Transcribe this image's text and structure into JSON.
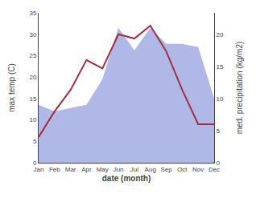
{
  "chart_data": {
    "type": "line",
    "xlabel": "date (month)",
    "ylabel": "max temp (C)",
    "y2label": "med. precipitation (kg/m2)",
    "categories": [
      "Jan",
      "Feb",
      "Mar",
      "Apr",
      "May",
      "Jun",
      "Jul",
      "Aug",
      "Sep",
      "Oct",
      "Nov",
      "Dec"
    ],
    "series": [
      {
        "type": "area",
        "axis": "y2",
        "color": "#b0b8e8",
        "values": [
          9.0,
          8.0,
          8.5,
          9.0,
          13.0,
          21.0,
          17.5,
          21.0,
          18.5,
          18.5,
          18.0,
          10.0
        ]
      },
      {
        "type": "line",
        "color": "#a03040",
        "values": [
          6.0,
          12.0,
          17.0,
          24.0,
          22.0,
          30.0,
          29.0,
          32.0,
          26.0,
          17.0,
          9.0,
          9.0
        ]
      }
    ],
    "ylim": [
      0,
      35
    ],
    "yticks": [
      0,
      5,
      10,
      15,
      20,
      25,
      30,
      35
    ],
    "y2lim": [
      0,
      23.33
    ],
    "y2ticks": [
      0,
      5,
      10,
      15,
      20
    ],
    "grid": false
  }
}
